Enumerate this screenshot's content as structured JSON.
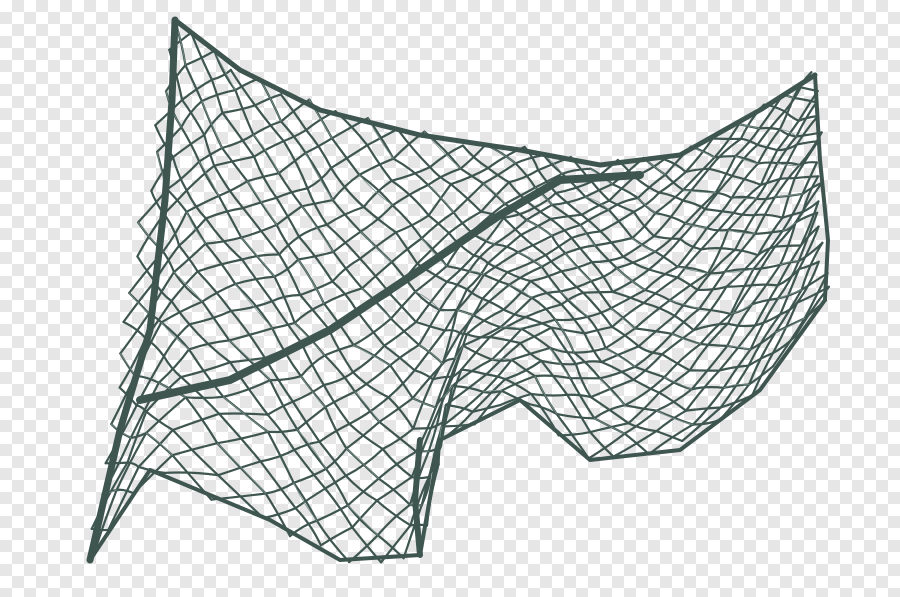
{
  "background": {
    "pattern": "transparency-checkerboard",
    "light_color": "#ffffff",
    "dark_color": "#e6e6e6"
  },
  "subject": {
    "name": "fishing-net",
    "rope_color": "#3f5650",
    "rope_highlight": "#7c918c"
  }
}
